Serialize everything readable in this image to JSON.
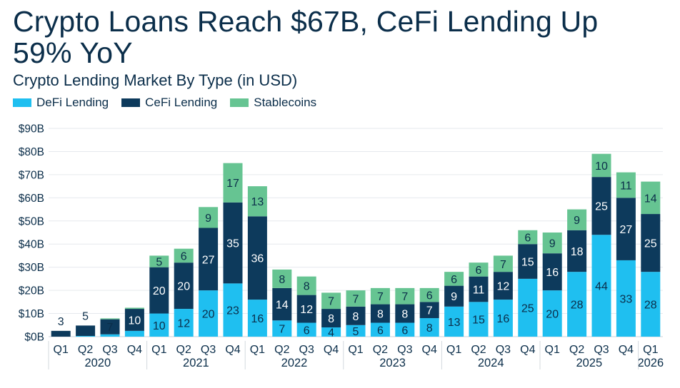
{
  "title": "Crypto Loans Reach $67B, CeFi Lending Up 59% YoY",
  "subtitle": "Crypto Lending Market By Type (in USD)",
  "colors": {
    "defi": "#1fbff0",
    "cefi": "#0d3a5c",
    "stable": "#66c492",
    "grid": "#e6e9ee",
    "text": "#0b2e4a"
  },
  "legend": [
    {
      "label": "DeFi Lending",
      "color": "#1fbff0"
    },
    {
      "label": "CeFi Lending",
      "color": "#0d3a5c"
    },
    {
      "label": "Stablecoins",
      "color": "#66c492"
    }
  ],
  "chart_data": {
    "type": "bar",
    "stacked": true,
    "ylim": [
      0,
      90
    ],
    "yticks": [
      "$0B",
      "$10B",
      "$20B",
      "$30B",
      "$40B",
      "$50B",
      "$60B",
      "$70B",
      "$80B",
      "$90B"
    ],
    "categories": [
      "Q1",
      "Q2",
      "Q3",
      "Q4",
      "Q1",
      "Q2",
      "Q3",
      "Q4",
      "Q1",
      "Q2",
      "Q3",
      "Q4",
      "Q1",
      "Q2",
      "Q3",
      "Q4",
      "Q1",
      "Q2",
      "Q3",
      "Q4",
      "Q1",
      "Q2",
      "Q3",
      "Q4",
      "Q1"
    ],
    "years": [
      {
        "label": "2020",
        "start": 0,
        "end": 3
      },
      {
        "label": "2021",
        "start": 4,
        "end": 7
      },
      {
        "label": "2022",
        "start": 8,
        "end": 11
      },
      {
        "label": "2023",
        "start": 12,
        "end": 15
      },
      {
        "label": "2024",
        "start": 16,
        "end": 19
      },
      {
        "label": "2025",
        "start": 20,
        "end": 23
      },
      {
        "label": "2026",
        "start": 24,
        "end": 24
      }
    ],
    "series": [
      {
        "name": "DeFi Lending",
        "values": [
          0,
          0.3,
          1,
          2.5,
          10,
          12,
          20,
          23,
          16,
          7,
          6,
          4,
          5,
          6,
          6,
          8,
          13,
          15,
          16,
          25,
          20,
          28,
          44,
          33,
          28
        ],
        "labels": [
          "",
          "",
          "",
          "",
          "10",
          "12",
          "20",
          "23",
          "16",
          "7",
          "6",
          "4",
          "5",
          "6",
          "6",
          "8",
          "13",
          "15",
          "16",
          "25",
          "20",
          "28",
          "44",
          "33",
          "28"
        ]
      },
      {
        "name": "CeFi Lending",
        "values": [
          2.5,
          4.5,
          6.5,
          9.5,
          20,
          20,
          27,
          35,
          36,
          14,
          12,
          8,
          8,
          8,
          8,
          7,
          9,
          11,
          12,
          15,
          16,
          18,
          25,
          27,
          25
        ],
        "labels": [
          "3",
          "5",
          "7",
          "10",
          "20",
          "20",
          "27",
          "35",
          "36",
          "14",
          "12",
          "8",
          "8",
          "8",
          "8",
          "7",
          "9",
          "11",
          "12",
          "15",
          "16",
          "18",
          "25",
          "27",
          "25"
        ]
      },
      {
        "name": "Stablecoins",
        "values": [
          0,
          0,
          0.4,
          0.5,
          5,
          6,
          9,
          17,
          13,
          8,
          8,
          7,
          7,
          7,
          7,
          6,
          6,
          6,
          7,
          6,
          9,
          9,
          10,
          11,
          14
        ],
        "labels": [
          "",
          "",
          "",
          "",
          "5",
          "6",
          "9",
          "17",
          "13",
          "8",
          "8",
          "7",
          "7",
          "7",
          "7",
          "6",
          "6",
          "6",
          "7",
          "6",
          "9",
          "9",
          "10",
          "11",
          "14"
        ]
      }
    ]
  }
}
